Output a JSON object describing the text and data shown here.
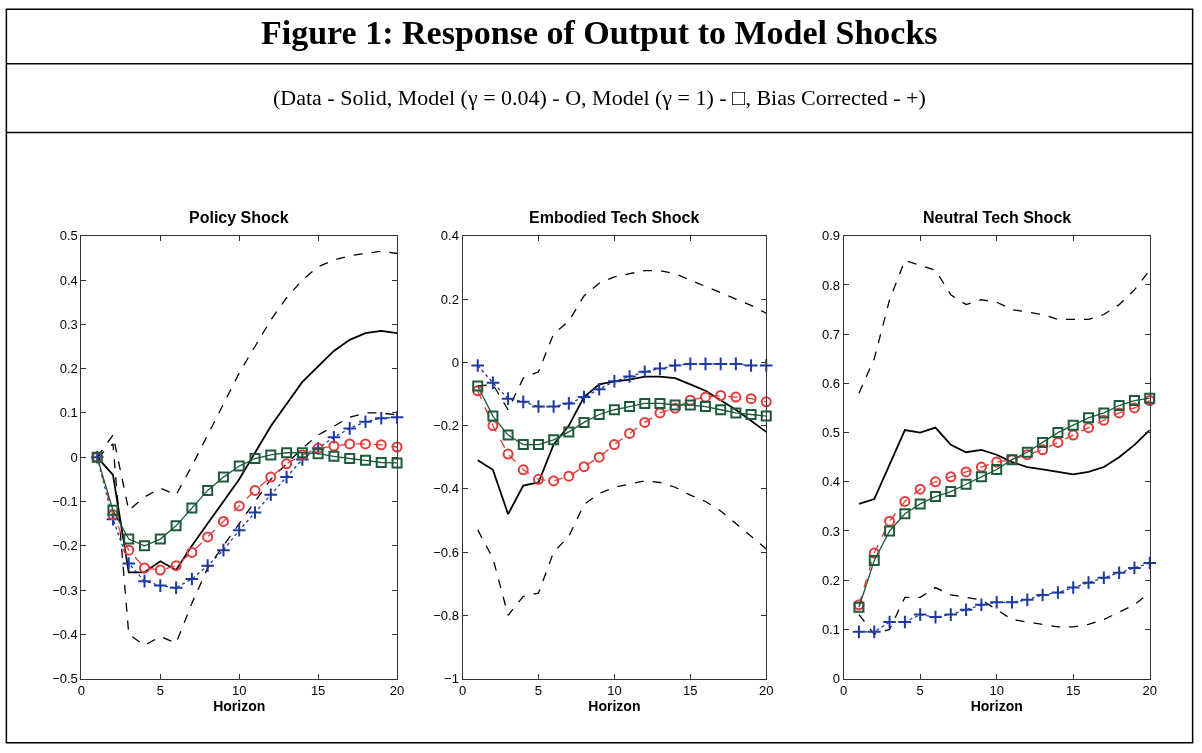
{
  "chart_data": [
    {
      "type": "other",
      "title": "Figure 1: Response of Output to Model Shocks",
      "subtitle": "(Data - Solid, Model (γ = 0.04) - O, Model (γ = 1) - □, Bias Corrected - +)"
    },
    {
      "type": "line",
      "title": "Policy Shock",
      "xlabel": "Horizon",
      "x": [
        1,
        2,
        3,
        4,
        5,
        6,
        7,
        8,
        9,
        10,
        11,
        12,
        13,
        14,
        15,
        16,
        17,
        18,
        19,
        20
      ],
      "xlim": [
        0,
        20
      ],
      "xticks": [
        0,
        5,
        10,
        15,
        20
      ],
      "ylim": [
        -0.5,
        0.5
      ],
      "yticks": [
        -0.5,
        -0.4,
        -0.3,
        -0.2,
        -0.1,
        0,
        0.1,
        0.2,
        0.3,
        0.4,
        0.5
      ],
      "series": [
        {
          "color": "#000000",
          "line_style": "dashed",
          "marker": "none",
          "values": [
            0,
            0.05,
            -0.12,
            -0.09,
            -0.07,
            -0.085,
            -0.02,
            0.05,
            0.12,
            0.19,
            0.25,
            0.31,
            0.36,
            0.4,
            0.43,
            0.445,
            0.455,
            0.46,
            0.465,
            0.46
          ]
        },
        {
          "color": "#000000",
          "line_style": "dashed",
          "marker": "none",
          "values": [
            0,
            0.03,
            -0.4,
            -0.425,
            -0.405,
            -0.42,
            -0.33,
            -0.25,
            -0.2,
            -0.15,
            -0.1,
            -0.05,
            -0.015,
            0.02,
            0.05,
            0.07,
            0.09,
            0.1,
            0.1,
            0.095
          ]
        },
        {
          "color": "#000000",
          "line_style": "solid",
          "marker": "none",
          "values": [
            0,
            -0.04,
            -0.26,
            -0.26,
            -0.235,
            -0.255,
            -0.2,
            -0.15,
            -0.1,
            -0.05,
            0.01,
            0.07,
            0.12,
            0.17,
            0.205,
            0.24,
            0.265,
            0.28,
            0.285,
            0.28
          ]
        },
        {
          "color": "#1f3a9e",
          "line_style": "dotted",
          "marker": "cross",
          "values": [
            0,
            -0.14,
            -0.24,
            -0.28,
            -0.29,
            -0.295,
            -0.275,
            -0.245,
            -0.21,
            -0.165,
            -0.125,
            -0.085,
            -0.045,
            -0.005,
            0.02,
            0.045,
            0.065,
            0.08,
            0.088,
            0.09
          ]
        },
        {
          "color": "#e03c3c",
          "line_style": "dashed",
          "marker": "circle",
          "values": [
            0,
            -0.13,
            -0.21,
            -0.25,
            -0.255,
            -0.245,
            -0.215,
            -0.18,
            -0.145,
            -0.11,
            -0.075,
            -0.045,
            -0.015,
            0.005,
            0.02,
            0.025,
            0.03,
            0.03,
            0.028,
            0.023
          ]
        },
        {
          "color": "#1e5a3c",
          "line_style": "solid",
          "marker": "square",
          "values": [
            0,
            -0.12,
            -0.185,
            -0.2,
            -0.185,
            -0.155,
            -0.115,
            -0.075,
            -0.045,
            -0.02,
            -0.003,
            0.005,
            0.01,
            0.01,
            0.008,
            0.002,
            -0.003,
            -0.007,
            -0.012,
            -0.013
          ]
        }
      ]
    },
    {
      "type": "line",
      "title": "Embodied Tech Shock",
      "xlabel": "Horizon",
      "x": [
        1,
        2,
        3,
        4,
        5,
        6,
        7,
        8,
        9,
        10,
        11,
        12,
        13,
        14,
        15,
        16,
        17,
        18,
        19,
        20
      ],
      "xlim": [
        0,
        20
      ],
      "xticks": [
        0,
        5,
        10,
        15,
        20
      ],
      "ylim": [
        -1,
        0.4
      ],
      "yticks": [
        -1,
        -0.8,
        -0.6,
        -0.4,
        -0.2,
        0,
        0.2,
        0.4
      ],
      "series": [
        {
          "color": "#000000",
          "line_style": "dashed",
          "marker": "none",
          "values": [
            -0.075,
            -0.07,
            -0.15,
            -0.05,
            -0.03,
            0.09,
            0.13,
            0.21,
            0.25,
            0.27,
            0.28,
            0.29,
            0.29,
            0.28,
            0.26,
            0.24,
            0.22,
            0.2,
            0.18,
            0.155
          ]
        },
        {
          "color": "#000000",
          "line_style": "dashed",
          "marker": "none",
          "values": [
            -0.53,
            -0.62,
            -0.8,
            -0.74,
            -0.73,
            -0.6,
            -0.55,
            -0.45,
            -0.415,
            -0.395,
            -0.385,
            -0.375,
            -0.38,
            -0.395,
            -0.42,
            -0.44,
            -0.47,
            -0.51,
            -0.55,
            -0.59
          ]
        },
        {
          "color": "#000000",
          "line_style": "solid",
          "marker": "none",
          "values": [
            -0.31,
            -0.34,
            -0.48,
            -0.39,
            -0.38,
            -0.26,
            -0.2,
            -0.11,
            -0.07,
            -0.06,
            -0.055,
            -0.045,
            -0.045,
            -0.05,
            -0.07,
            -0.09,
            -0.12,
            -0.15,
            -0.185,
            -0.22
          ]
        },
        {
          "color": "#1f3a9e",
          "line_style": "dotted",
          "marker": "cross",
          "values": [
            -0.01,
            -0.065,
            -0.115,
            -0.125,
            -0.14,
            -0.14,
            -0.13,
            -0.11,
            -0.085,
            -0.06,
            -0.045,
            -0.03,
            -0.02,
            -0.01,
            -0.005,
            -0.005,
            -0.005,
            -0.005,
            -0.01,
            -0.01
          ]
        },
        {
          "color": "#e03c3c",
          "line_style": "dashed",
          "marker": "circle",
          "values": [
            -0.09,
            -0.2,
            -0.29,
            -0.34,
            -0.37,
            -0.375,
            -0.36,
            -0.33,
            -0.3,
            -0.26,
            -0.225,
            -0.19,
            -0.16,
            -0.145,
            -0.12,
            -0.11,
            -0.105,
            -0.11,
            -0.115,
            -0.125
          ]
        },
        {
          "color": "#1e5a3c",
          "line_style": "solid",
          "marker": "square",
          "values": [
            -0.075,
            -0.17,
            -0.23,
            -0.26,
            -0.26,
            -0.245,
            -0.22,
            -0.19,
            -0.165,
            -0.15,
            -0.14,
            -0.13,
            -0.13,
            -0.135,
            -0.135,
            -0.14,
            -0.15,
            -0.16,
            -0.165,
            -0.17
          ]
        }
      ]
    },
    {
      "type": "line",
      "title": "Neutral Tech Shock",
      "xlabel": "Horizon",
      "x": [
        1,
        2,
        3,
        4,
        5,
        6,
        7,
        8,
        9,
        10,
        11,
        12,
        13,
        14,
        15,
        16,
        17,
        18,
        19,
        20
      ],
      "xlim": [
        0,
        20
      ],
      "xticks": [
        0,
        5,
        10,
        15,
        20
      ],
      "ylim": [
        0,
        0.9
      ],
      "yticks": [
        0,
        0.1,
        0.2,
        0.3,
        0.4,
        0.5,
        0.6,
        0.7,
        0.8,
        0.9
      ],
      "series": [
        {
          "color": "#000000",
          "line_style": "dashed",
          "marker": "none",
          "values": [
            0.58,
            0.65,
            0.77,
            0.85,
            0.84,
            0.83,
            0.78,
            0.76,
            0.77,
            0.765,
            0.75,
            0.745,
            0.74,
            0.73,
            0.73,
            0.73,
            0.74,
            0.76,
            0.79,
            0.83
          ]
        },
        {
          "color": "#000000",
          "line_style": "dashed",
          "marker": "none",
          "values": [
            0.13,
            0.09,
            0.1,
            0.165,
            0.165,
            0.185,
            0.17,
            0.165,
            0.16,
            0.14,
            0.12,
            0.115,
            0.11,
            0.105,
            0.105,
            0.11,
            0.12,
            0.135,
            0.15,
            0.175
          ]
        },
        {
          "color": "#000000",
          "line_style": "solid",
          "marker": "none",
          "values": [
            0.355,
            0.365,
            0.435,
            0.505,
            0.5,
            0.51,
            0.475,
            0.46,
            0.465,
            0.455,
            0.44,
            0.43,
            0.425,
            0.42,
            0.415,
            0.42,
            0.43,
            0.45,
            0.475,
            0.505
          ]
        },
        {
          "color": "#1f3a9e",
          "line_style": "dotted",
          "marker": "cross",
          "values": [
            0.095,
            0.095,
            0.115,
            0.115,
            0.13,
            0.125,
            0.13,
            0.14,
            0.15,
            0.155,
            0.155,
            0.16,
            0.17,
            0.175,
            0.185,
            0.195,
            0.205,
            0.215,
            0.225,
            0.235
          ]
        },
        {
          "color": "#e03c3c",
          "line_style": "dashed",
          "marker": "circle",
          "values": [
            0.15,
            0.255,
            0.32,
            0.36,
            0.385,
            0.4,
            0.41,
            0.42,
            0.43,
            0.44,
            0.445,
            0.455,
            0.465,
            0.48,
            0.495,
            0.51,
            0.525,
            0.54,
            0.55,
            0.565
          ]
        },
        {
          "color": "#1e5a3c",
          "line_style": "solid",
          "marker": "square",
          "values": [
            0.145,
            0.24,
            0.3,
            0.335,
            0.355,
            0.37,
            0.38,
            0.395,
            0.41,
            0.425,
            0.445,
            0.46,
            0.48,
            0.5,
            0.515,
            0.53,
            0.54,
            0.555,
            0.565,
            0.57
          ]
        }
      ]
    }
  ]
}
